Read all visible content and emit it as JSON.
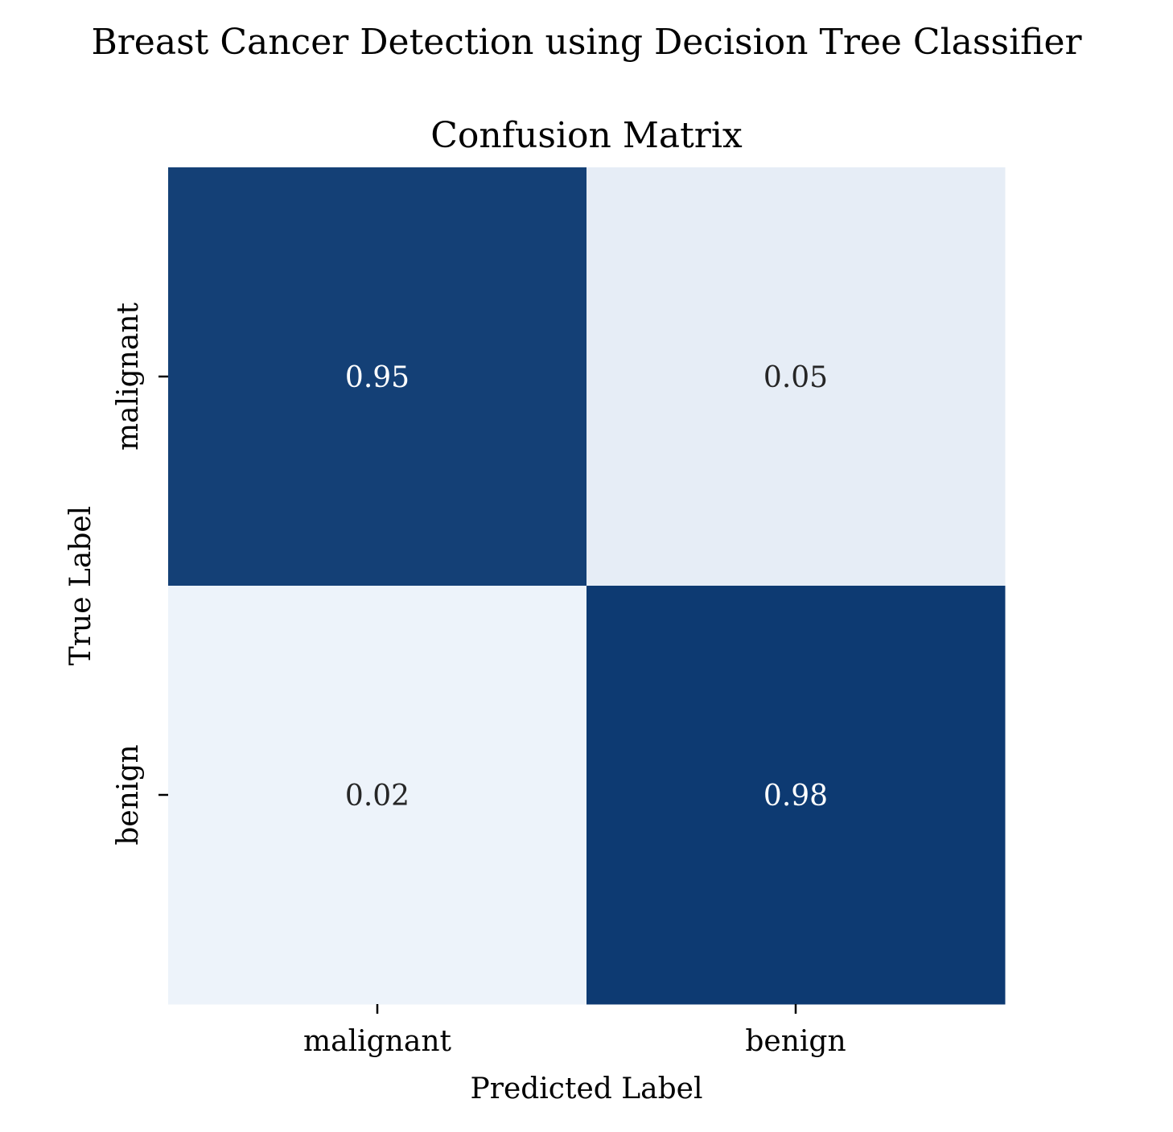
{
  "figure": {
    "suptitle": "Breast Cancer Detection using Decision Tree Classifier"
  },
  "chart_data": {
    "type": "heatmap",
    "title": "Confusion Matrix",
    "xlabel": "Predicted Label",
    "ylabel": "True Label",
    "x_categories": [
      "malignant",
      "benign"
    ],
    "y_categories": [
      "malignant",
      "benign"
    ],
    "values": [
      [
        0.95,
        0.05
      ],
      [
        0.02,
        0.98
      ]
    ],
    "value_labels": [
      [
        "0.95",
        "0.05"
      ],
      [
        "0.02",
        "0.98"
      ]
    ],
    "colormap": "Blues",
    "colors": {
      "high": "#08366f",
      "low": "#f2f7fd",
      "text_on_dark": "#ffffff",
      "text_on_light": "#262626"
    },
    "colorbar": false,
    "grid": false
  }
}
